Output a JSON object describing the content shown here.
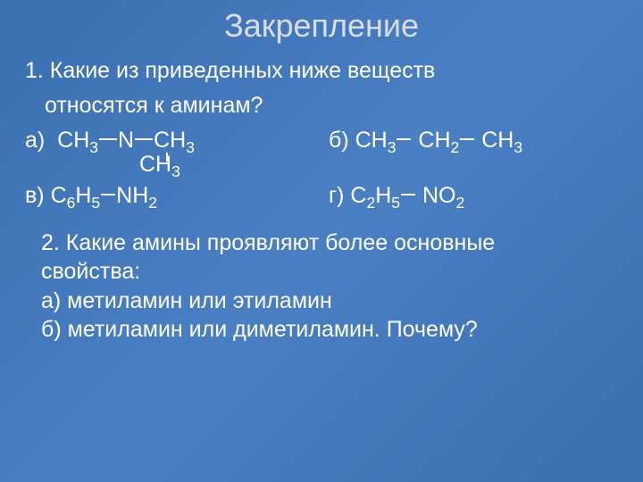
{
  "colors": {
    "background_gradient_start": "#3a6fb0",
    "background_gradient_mid": "#4a7fc4",
    "background_gradient_end": "#3a6fb0",
    "title_color": "#d9dde2",
    "text_color": "#ffffff",
    "bond_color": "#ffffff"
  },
  "typography": {
    "title_fontsize": 36,
    "body_fontsize": 25,
    "font_family": "Arial"
  },
  "title": "Закрепление",
  "q1": {
    "line1": "1. Какие из приведенных ниже веществ",
    "line2": "относятся к аминам?",
    "a": {
      "label": "а)",
      "p1": "CH",
      "p1s": "3",
      "p2": "N",
      "p3": "CH",
      "p3s": "3",
      "below": "CH",
      "below_s": "3"
    },
    "b": {
      "label": "б)",
      "p1": "CH",
      "p1s": "3",
      "p2": "CH",
      "p2s": "2",
      "p3": "CH",
      "p3s": "3"
    },
    "v": {
      "label": "в)",
      "p1": "C",
      "p1s1": "6",
      "p2": "H",
      "p2s": "5",
      "p3": "NH",
      "p3s": "2"
    },
    "g": {
      "label": "г)",
      "p1": "C",
      "p1s": "2",
      "p2": "H",
      "p2s": "5",
      "p3": "NO",
      "p3s": "2"
    }
  },
  "q2": {
    "line1": "2. Какие амины проявляют более основные",
    "line2": "свойства:",
    "line3": "а) метиламин или этиламин",
    "line4": "б) метиламин или диметиламин. Почему?"
  }
}
